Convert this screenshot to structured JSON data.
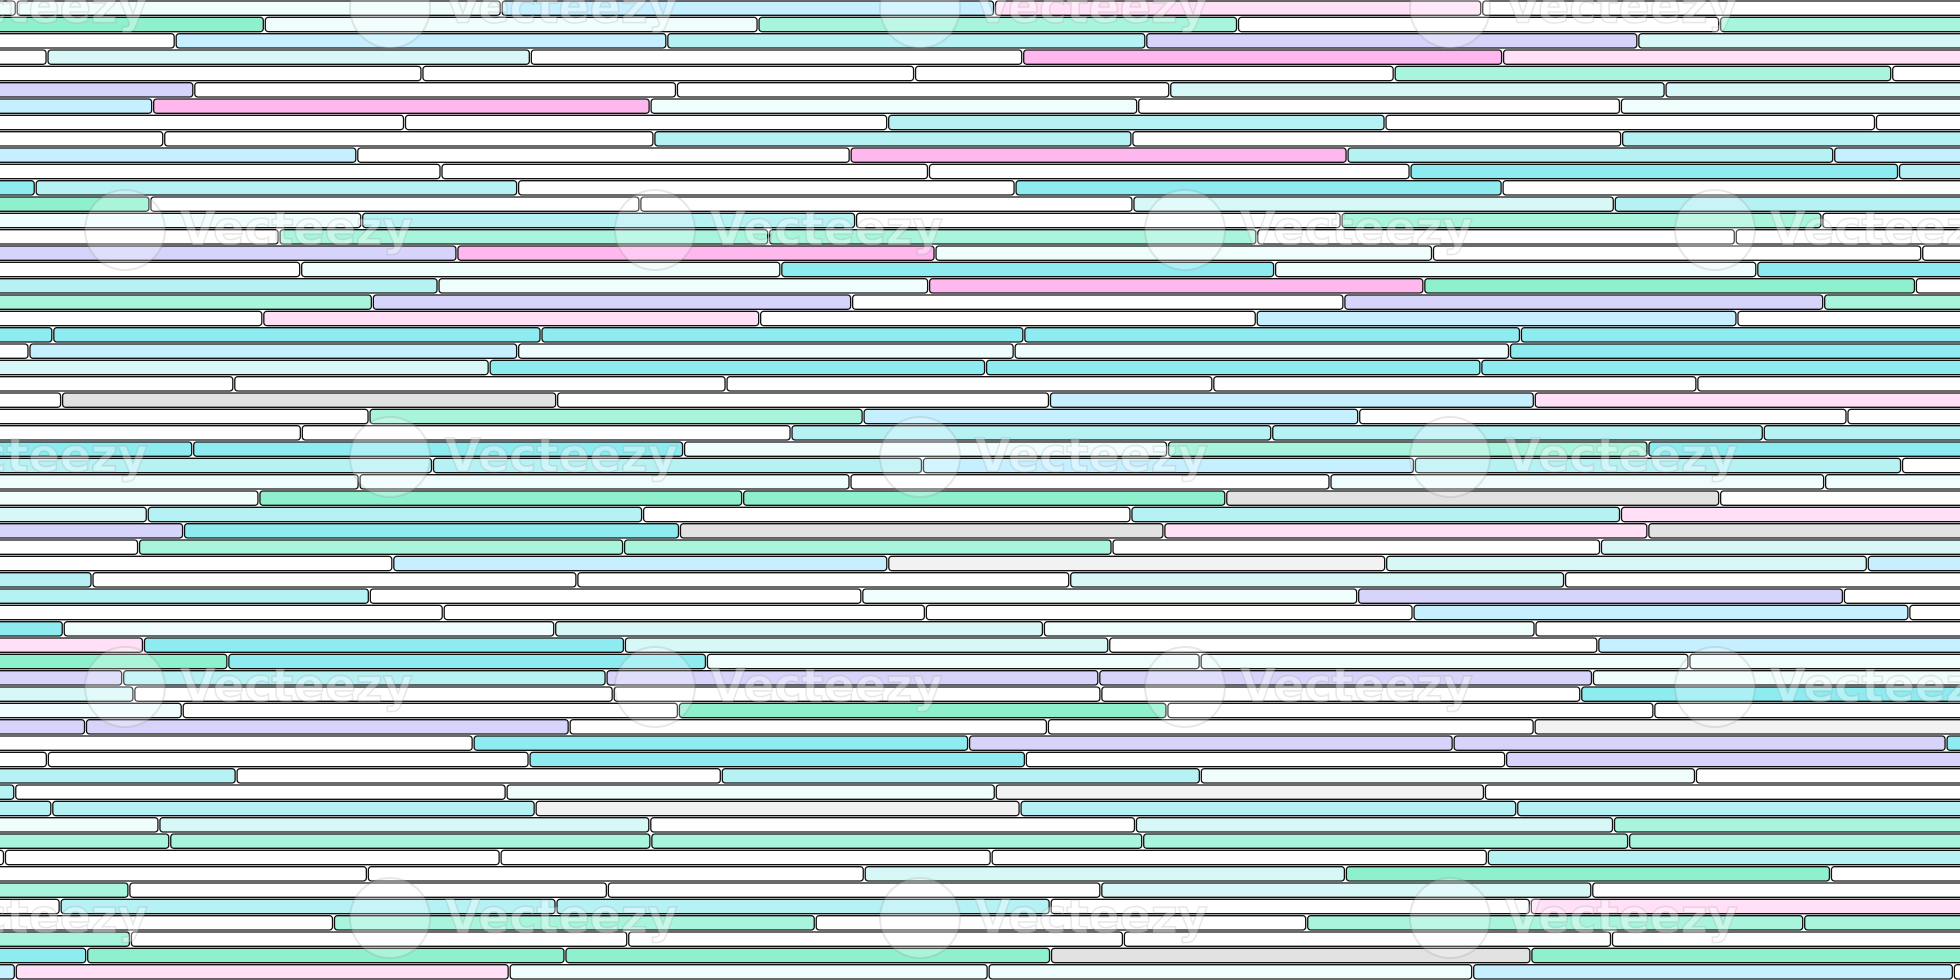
{
  "watermark": "Vecteezy"
}
